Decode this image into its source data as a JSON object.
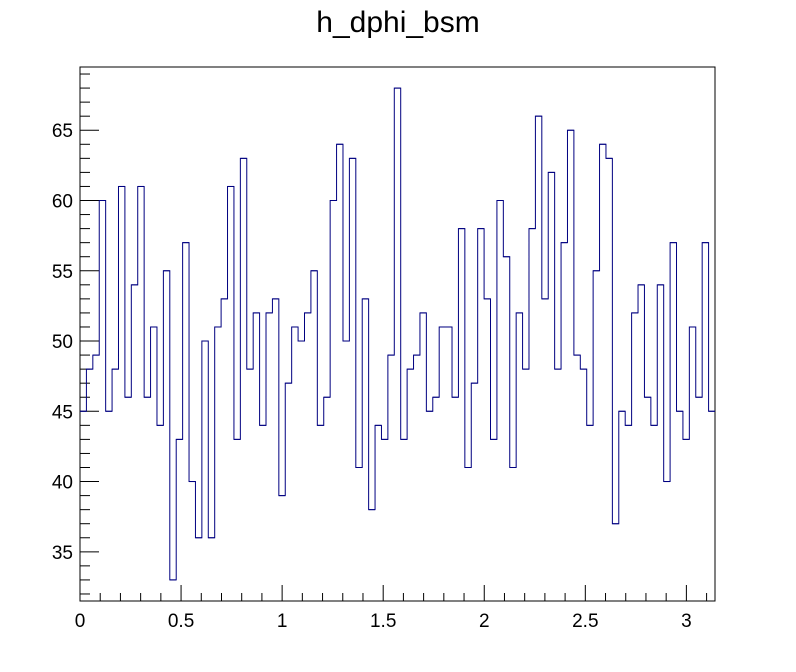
{
  "chart_data": {
    "type": "histogram",
    "title": "h_dphi_bsm",
    "xlabel": "",
    "ylabel": "",
    "xlim": [
      0,
      3.14159
    ],
    "ylim": [
      31.5,
      69.5
    ],
    "x_ticks": [
      0,
      0.5,
      1,
      1.5,
      2,
      2.5,
      3
    ],
    "x_tick_labels": [
      "0",
      "0.5",
      "1",
      "1.5",
      "2",
      "2.5",
      "3"
    ],
    "y_ticks": [
      35,
      40,
      45,
      50,
      55,
      60,
      65
    ],
    "y_tick_labels": [
      "35",
      "40",
      "45",
      "50",
      "55",
      "60",
      "65"
    ],
    "grid": false,
    "legend": false,
    "line_color": "#000080",
    "series": [
      {
        "values": [
          45,
          48,
          49,
          60,
          45,
          48,
          61,
          46,
          54,
          61,
          46,
          51,
          44,
          55,
          33,
          43,
          57,
          40,
          36,
          50,
          36,
          51,
          53,
          61,
          43,
          63,
          48,
          52,
          44,
          52,
          53,
          39,
          47,
          51,
          50,
          52,
          55,
          44,
          46,
          60,
          64,
          50,
          63,
          41,
          53,
          38,
          44,
          43,
          49,
          68,
          43,
          48,
          49,
          52,
          45,
          46,
          51,
          51,
          46,
          58,
          41,
          47,
          58,
          53,
          43,
          60,
          56,
          41,
          52,
          48,
          58,
          66,
          53,
          62,
          48,
          57,
          65,
          49,
          48,
          44,
          55,
          64,
          63,
          37,
          45,
          44,
          52,
          54,
          46,
          44,
          54,
          40,
          57,
          45,
          43,
          51,
          46,
          57,
          45
        ]
      }
    ]
  }
}
